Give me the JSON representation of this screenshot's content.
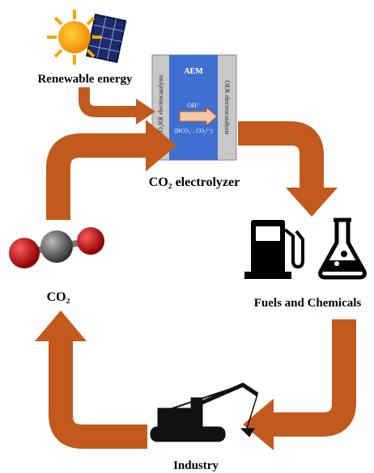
{
  "labels": {
    "renewable": "Renewable energy",
    "aem": "AEM",
    "cathode": "ECO₂RR electrocatalysts",
    "anode": "OER electrocatalysts",
    "ion": "OH⁻",
    "ions_alt": "(HCO₃⁻, CO₃²⁻)",
    "electrolyzer": "CO₂ electrolyzer",
    "co2": "CO₂",
    "products": "Fuels and Chemicals",
    "industry": "Industry"
  }
}
